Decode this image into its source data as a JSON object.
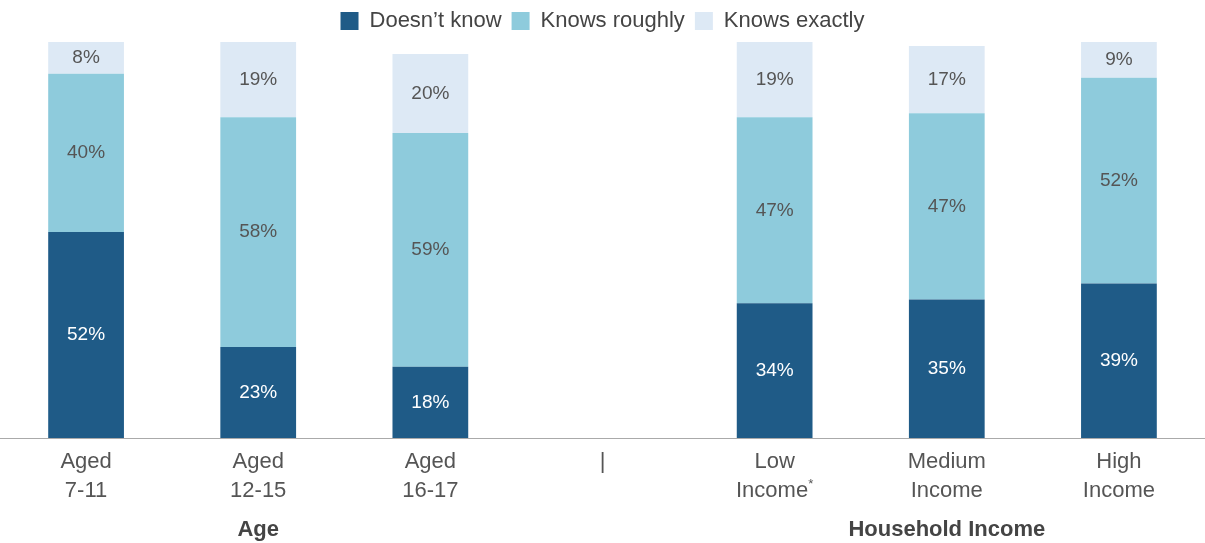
{
  "chart_data": {
    "type": "bar",
    "stacked": true,
    "legend": "top",
    "grid": false,
    "categories": [
      "Aged 7-11",
      "Aged 12-15",
      "Aged 16-17",
      "|",
      "Low Income$^{*}$",
      "Medium Income",
      "High Income"
    ],
    "series": [
      {
        "name": "Doesn’t know",
        "color": "#1f5b87",
        "values": [
          52,
          23,
          18,
          null,
          34,
          35,
          39
        ],
        "value_labels": [
          "52%",
          "23%",
          "18%",
          null,
          "34%",
          "35%",
          "39%"
        ]
      },
      {
        "name": "Knows roughly",
        "color": "#8ecbdc",
        "values": [
          40,
          58,
          59,
          null,
          47,
          47,
          52
        ],
        "value_labels": [
          "40%",
          "58%",
          "59%",
          null,
          "47%",
          "47%",
          "52%"
        ]
      },
      {
        "name": "Knows exactly",
        "color": "#dde9f5",
        "values": [
          8,
          19,
          20,
          null,
          19,
          17,
          9
        ],
        "value_labels": [
          "8%",
          "19%",
          "20%",
          null,
          "19%",
          "17%",
          "9%"
        ]
      }
    ],
    "annotations": [
      "Age",
      "Household Income"
    ]
  }
}
